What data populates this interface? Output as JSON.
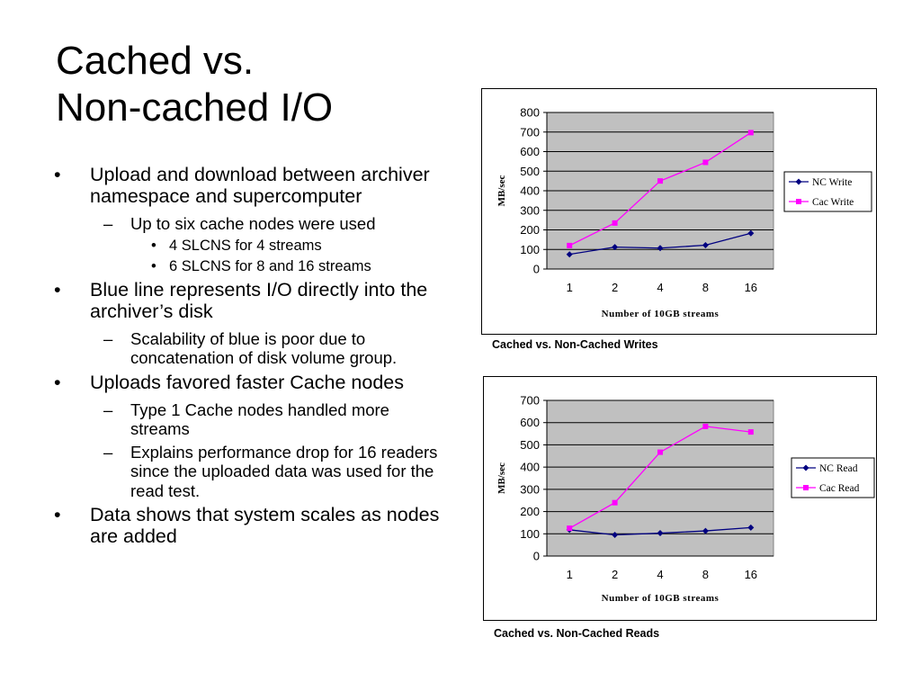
{
  "slide": {
    "title_line1": "Cached vs.",
    "title_line2": "Non-cached I/O",
    "bullets": [
      {
        "level": 1,
        "text": "Upload and download between archiver namespace and supercomputer"
      },
      {
        "level": 2,
        "text": "Up to six cache nodes were used"
      },
      {
        "level": 3,
        "text": "4 SLCNS for 4 streams"
      },
      {
        "level": 3,
        "text": "6 SLCNS for 8 and 16 streams"
      },
      {
        "level": 1,
        "text": "Blue line represents I/O directly into the archiver’s disk"
      },
      {
        "level": 2,
        "text": "Scalability of blue is poor due to concatenation of disk volume group."
      },
      {
        "level": 1,
        "text": "Uploads favored faster Cache nodes"
      },
      {
        "level": 2,
        "text": "Type 1 Cache nodes handled more streams"
      },
      {
        "level": 2,
        "text": "Explains performance drop for 16 readers since the uploaded data was used for the read test."
      },
      {
        "level": 1,
        "text": "Data shows that system scales as nodes are added"
      }
    ]
  },
  "colors": {
    "nc": "#000080",
    "cac": "#ff00ff",
    "plot_bg": "#c0c0c0"
  },
  "chart_data": [
    {
      "type": "line",
      "caption": "Cached vs. Non-Cached Writes",
      "categories": [
        "1",
        "2",
        "4",
        "8",
        "16"
      ],
      "xlabel": "Number of 10GB streams",
      "ylabel": "MB/sec",
      "ylim": [
        0,
        800
      ],
      "yticks": [
        "0",
        "100",
        "200",
        "300",
        "400",
        "500",
        "600",
        "700",
        "800"
      ],
      "grid": true,
      "legend_position": "right",
      "series": [
        {
          "name": "NC Write",
          "values": [
            75,
            112,
            107,
            122,
            183
          ]
        },
        {
          "name": "Cac Write",
          "values": [
            120,
            235,
            450,
            545,
            697
          ]
        }
      ]
    },
    {
      "type": "line",
      "caption": "Cached vs. Non-Cached Reads",
      "categories": [
        "1",
        "2",
        "4",
        "8",
        "16"
      ],
      "xlabel": "Number of 10GB streams",
      "ylabel": "MB/sec",
      "ylim": [
        0,
        700
      ],
      "yticks": [
        "0",
        "100",
        "200",
        "300",
        "400",
        "500",
        "600",
        "700"
      ],
      "grid": true,
      "legend_position": "right",
      "series": [
        {
          "name": "NC Read",
          "values": [
            118,
            95,
            103,
            113,
            128
          ]
        },
        {
          "name": "Cac Read",
          "values": [
            125,
            240,
            467,
            583,
            558
          ]
        }
      ]
    }
  ]
}
